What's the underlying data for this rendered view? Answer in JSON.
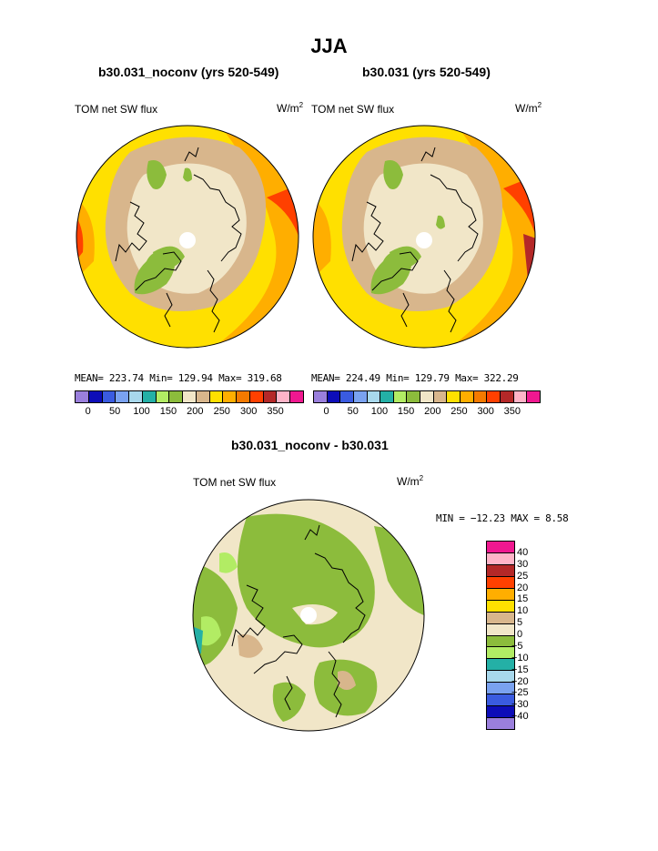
{
  "title": "JJA",
  "panels": [
    {
      "id": "left",
      "title": "b30.031_noconv (yrs 520-549)",
      "variable": "TOM net SW flux",
      "unit_base": "W/m",
      "unit_sup": "2",
      "stats": "MEAN= 223.74  Min= 129.94  Max= 319.68"
    },
    {
      "id": "right",
      "title": "b30.031 (yrs 520-549)",
      "variable": "TOM net SW flux",
      "unit_base": "W/m",
      "unit_sup": "2",
      "stats": "MEAN= 224.49  Min= 129.79  Max= 322.29"
    }
  ],
  "abs_colorbar": {
    "colors": [
      "#9a7fdc",
      "#0d0db8",
      "#3a5be0",
      "#7aa2f0",
      "#a8d8ec",
      "#24b0a6",
      "#b2ec64",
      "#8cbc3c",
      "#f1e6c8",
      "#d8b68c",
      "#ffe000",
      "#ffae00",
      "#f47a00",
      "#ff4000",
      "#b42828",
      "#ffb4c8",
      "#f01890"
    ],
    "ticks": [
      "0",
      "50",
      "100",
      "150",
      "200",
      "250",
      "300",
      "350"
    ]
  },
  "diff_panel": {
    "title": "b30.031_noconv - b30.031",
    "variable": "TOM net SW flux",
    "unit_base": "W/m",
    "unit_sup": "2",
    "minmax": "MIN = −12.23 MAX =    8.58"
  },
  "diff_colorbar": {
    "colors": [
      "#f01890",
      "#ffb4c8",
      "#b42828",
      "#ff4000",
      "#ffae00",
      "#ffe000",
      "#d8b68c",
      "#f1e6c8",
      "#8cbc3c",
      "#b2ec64",
      "#24b0a6",
      "#a8d8ec",
      "#7aa2f0",
      "#3a5be0",
      "#0d0db8",
      "#9a7fdc"
    ],
    "labels": [
      "40",
      "30",
      "25",
      "20",
      "15",
      "10",
      "5",
      "0",
      "−5",
      "−10",
      "−15",
      "−20",
      "−25",
      "−30",
      "−40"
    ]
  }
}
